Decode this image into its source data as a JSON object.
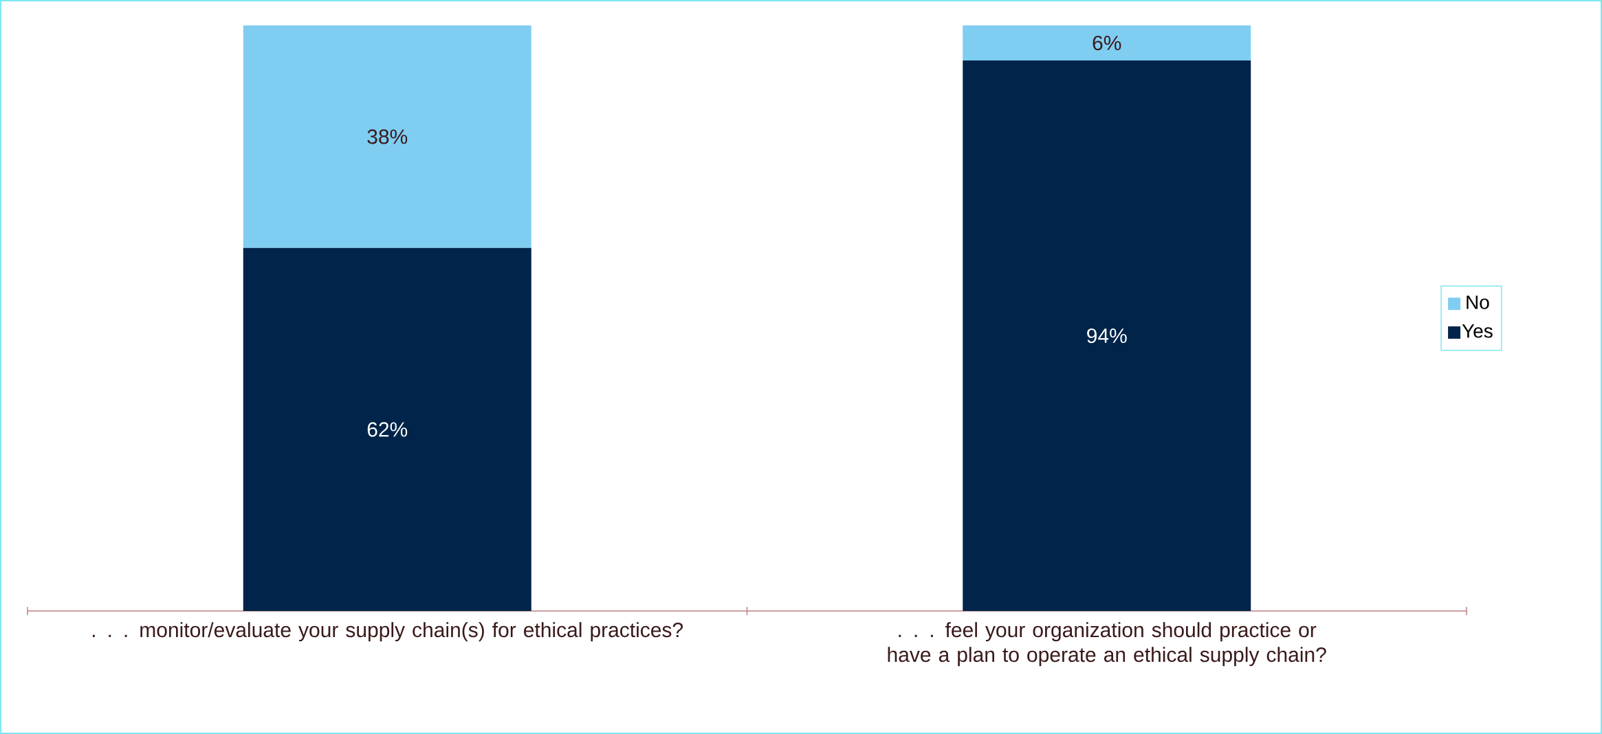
{
  "chart_data": {
    "type": "bar",
    "stacked": true,
    "categories": [
      ". . . monitor/evaluate your supply chain(s) for ethical practices?",
      ". . . feel your organization should practice or have a plan to operate an ethical supply chain?"
    ],
    "series": [
      {
        "name": "Yes",
        "color": "#00244a",
        "values": [
          62,
          94
        ],
        "value_labels": [
          "62%",
          "94%"
        ]
      },
      {
        "name": "No",
        "color": "#7fcef2",
        "values": [
          38,
          6
        ],
        "value_labels": [
          "38%",
          "6%"
        ]
      }
    ],
    "ylim": [
      0,
      100
    ],
    "legend": "right",
    "tick_labels": "x"
  }
}
